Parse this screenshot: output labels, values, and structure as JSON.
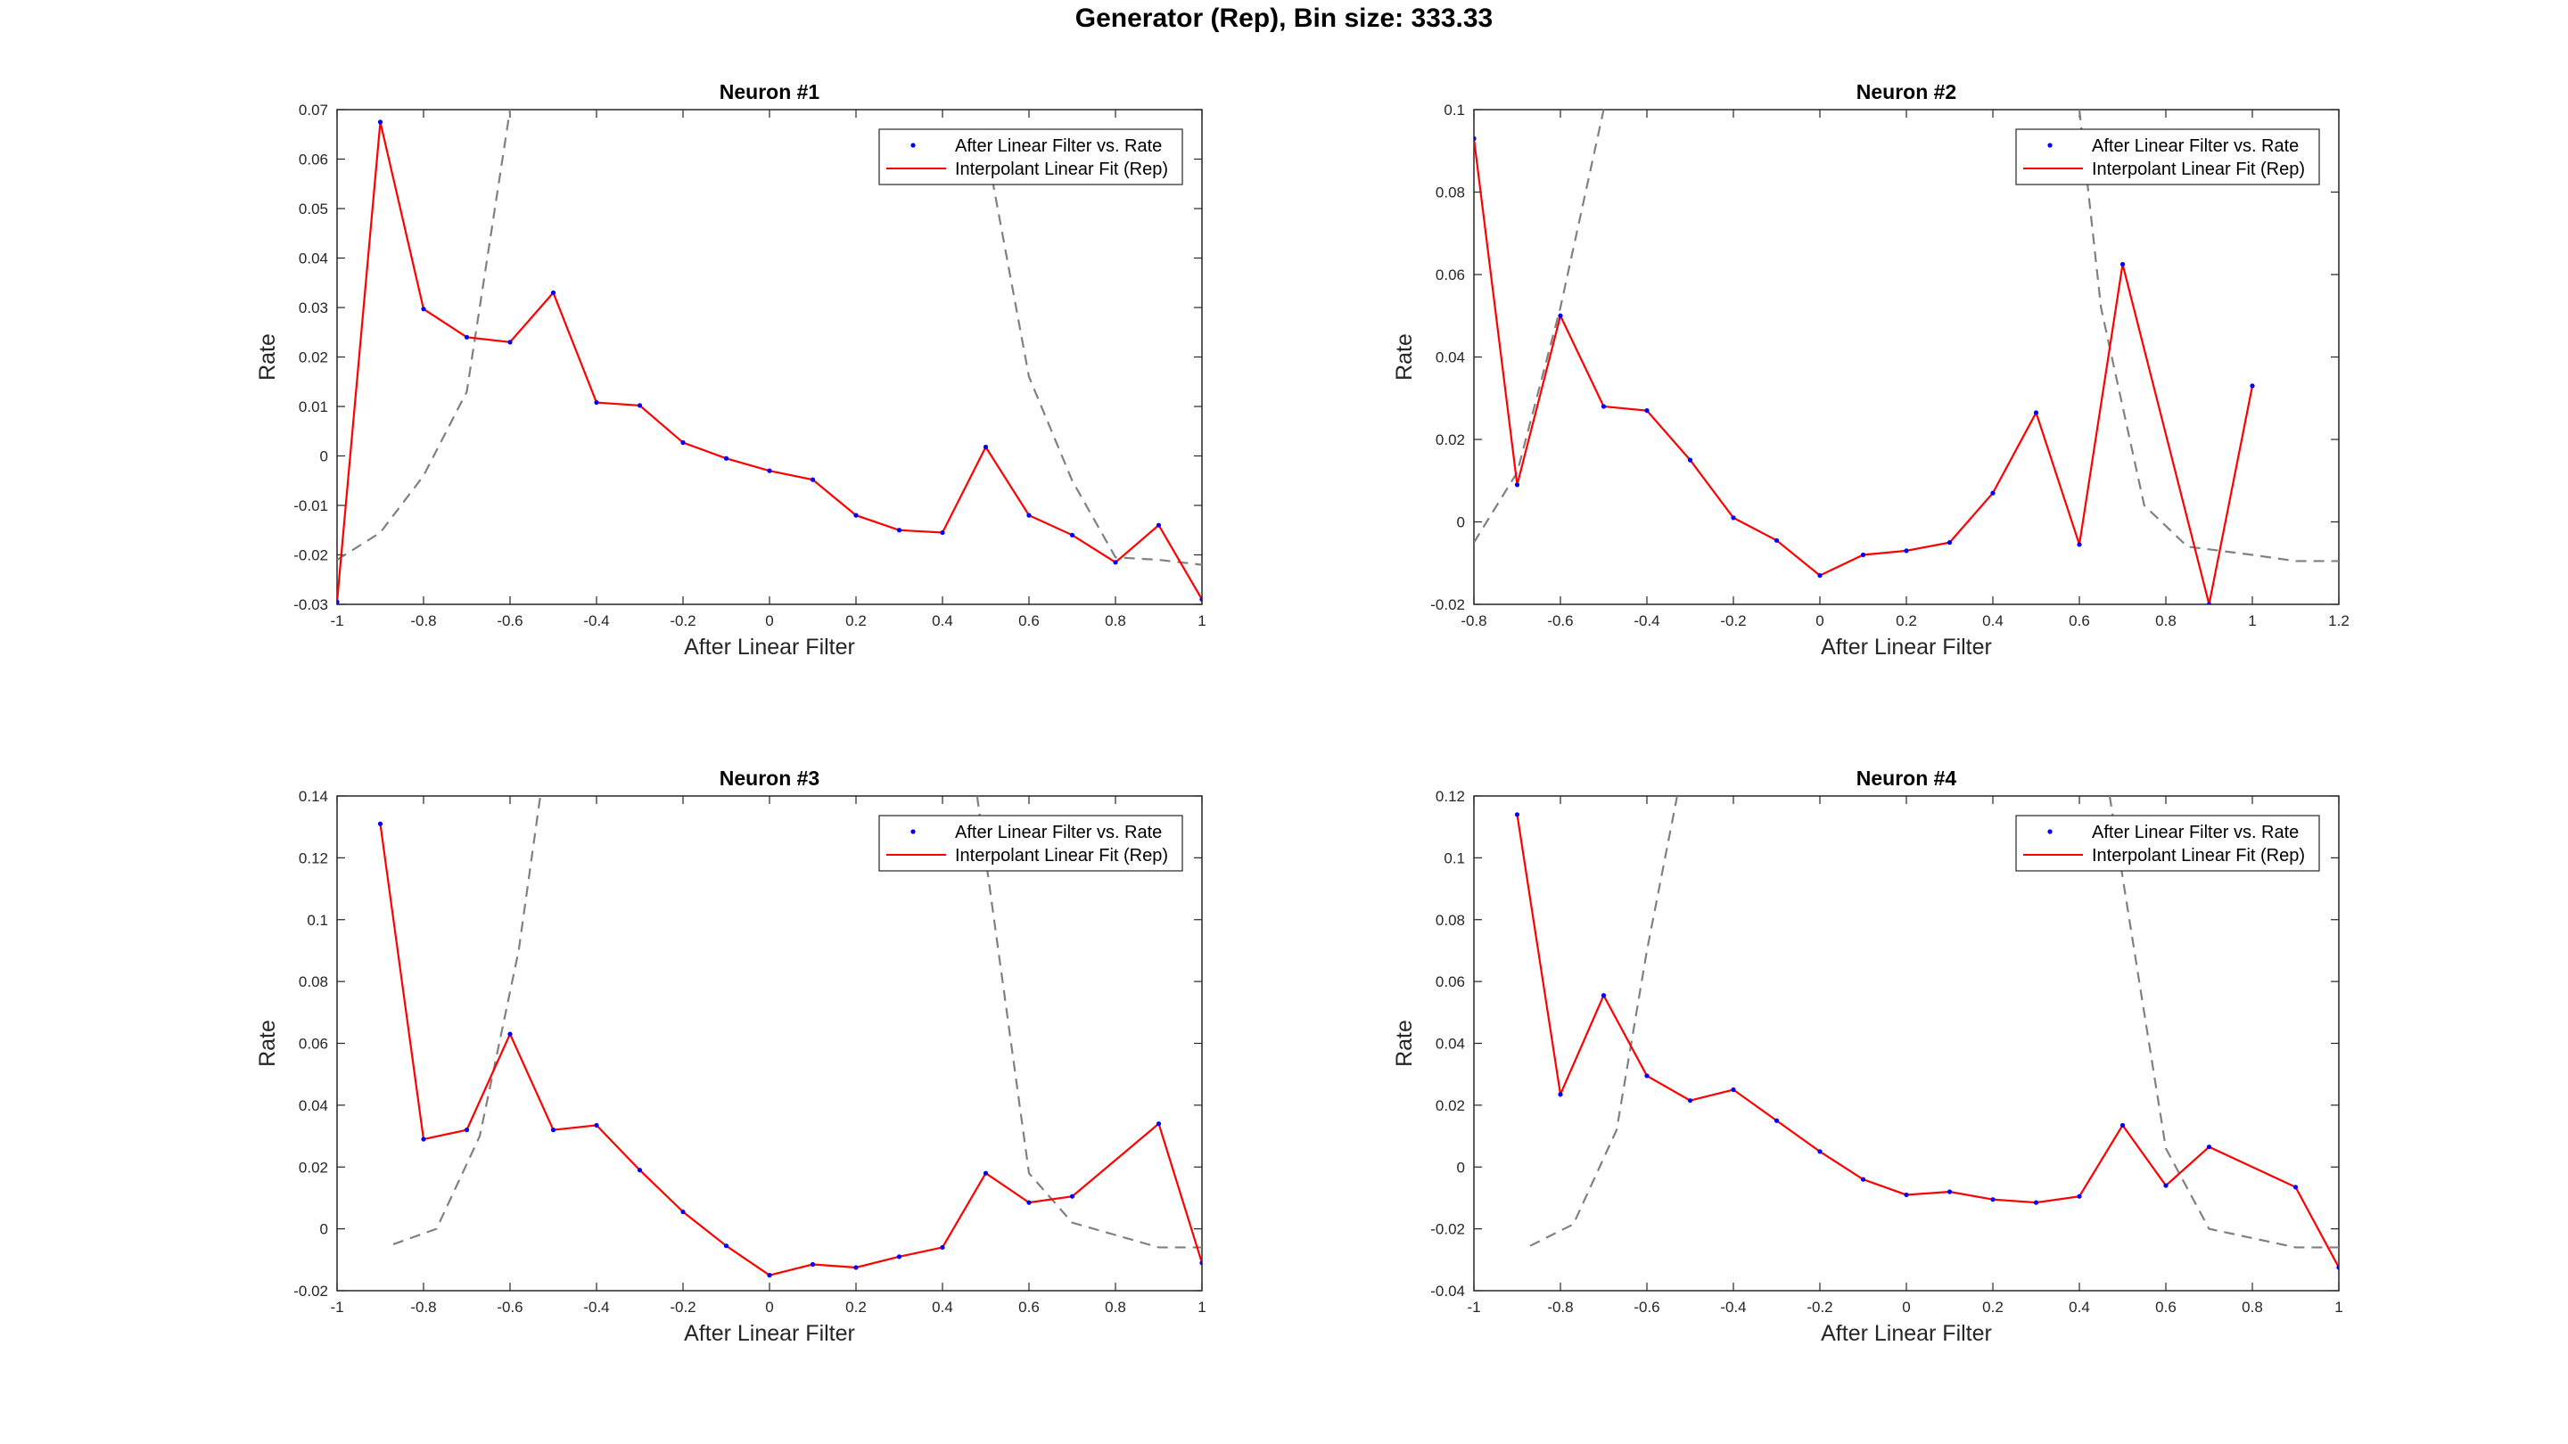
{
  "figure": {
    "title": "Generator (Rep), Bin size: 333.33"
  },
  "legend": {
    "markers_label": "After Linear Filter vs. Rate",
    "fit_label": "Interpolant Linear Fit (Rep)"
  },
  "colors": {
    "fit": "#ff0000",
    "points": "#0000ff",
    "dashed": "#808080",
    "axis": "#262626"
  },
  "chart_data": [
    {
      "type": "line",
      "title": "Neuron #1",
      "xlabel": "After Linear Filter",
      "ylabel": "Rate",
      "xlim": [
        -1,
        1
      ],
      "ylim": [
        -0.03,
        0.07
      ],
      "xticks": [
        "-1",
        "-0.8",
        "-0.6",
        "-0.4",
        "-0.2",
        "0",
        "0.2",
        "0.4",
        "0.6",
        "0.8",
        "1"
      ],
      "xtick_values": [
        -1,
        -0.8,
        -0.6,
        -0.4,
        -0.2,
        0,
        0.2,
        0.4,
        0.6,
        0.8,
        1
      ],
      "yticks": [
        "-0.03",
        "-0.02",
        "-0.01",
        "0",
        "0.01",
        "0.02",
        "0.03",
        "0.04",
        "0.05",
        "0.06",
        "0.07"
      ],
      "ytick_values": [
        -0.03,
        -0.02,
        -0.01,
        0,
        0.01,
        0.02,
        0.03,
        0.04,
        0.05,
        0.06,
        0.07
      ],
      "legend_position": "top-right",
      "series": [
        {
          "x": [
            -1,
            -0.9,
            -0.8,
            -0.7,
            -0.6,
            -0.5,
            -0.4,
            -0.3,
            -0.2,
            -0.1,
            0,
            0.1,
            0.2,
            0.3,
            0.4,
            0.5,
            0.6,
            0.7,
            0.8,
            0.9,
            1
          ],
          "y": [
            -0.0295,
            0.0675,
            0.0297,
            0.024,
            0.023,
            0.033,
            0.0108,
            0.0102,
            0.0027,
            -0.0005,
            -0.003,
            -0.0048,
            -0.012,
            -0.015,
            -0.0155,
            0.0018,
            -0.012,
            -0.016,
            -0.0215,
            -0.014,
            -0.029
          ]
        }
      ],
      "dashed_curves": [
        {
          "x": [
            -1,
            -0.9,
            -0.8,
            -0.7,
            -0.6
          ],
          "y": [
            -0.021,
            -0.0155,
            -0.004,
            0.013,
            0.07
          ]
        },
        {
          "x": [
            0.5,
            0.6,
            0.7,
            0.8,
            0.9,
            1
          ],
          "y": [
            0.063,
            0.016,
            -0.005,
            -0.0205,
            -0.021,
            -0.022
          ]
        }
      ]
    },
    {
      "type": "line",
      "title": "Neuron #2",
      "xlabel": "After Linear Filter",
      "ylabel": "Rate",
      "xlim": [
        -0.8,
        1.2
      ],
      "ylim": [
        -0.02,
        0.1
      ],
      "xticks": [
        "-0.8",
        "-0.6",
        "-0.4",
        "-0.2",
        "0",
        "0.2",
        "0.4",
        "0.6",
        "0.8",
        "1",
        "1.2"
      ],
      "xtick_values": [
        -0.8,
        -0.6,
        -0.4,
        -0.2,
        0,
        0.2,
        0.4,
        0.6,
        0.8,
        1,
        1.2
      ],
      "yticks": [
        "-0.02",
        "0",
        "0.02",
        "0.04",
        "0.06",
        "0.08",
        "0.1"
      ],
      "ytick_values": [
        -0.02,
        0,
        0.02,
        0.04,
        0.06,
        0.08,
        0.1
      ],
      "legend_position": "top-right",
      "series": [
        {
          "x": [
            -0.8,
            -0.7,
            -0.6,
            -0.5,
            -0.4,
            -0.3,
            -0.2,
            -0.1,
            0,
            0.1,
            0.2,
            0.3,
            0.4,
            0.5,
            0.6,
            0.7,
            0.9,
            1
          ],
          "y": [
            0.093,
            0.009,
            0.05,
            0.028,
            0.027,
            0.015,
            0.001,
            -0.0045,
            -0.013,
            -0.008,
            -0.007,
            -0.005,
            0.007,
            0.0265,
            -0.0055,
            0.0625,
            -0.02,
            0.033
          ]
        }
      ],
      "dashed_curves": [
        {
          "x": [
            -0.8,
            -0.7,
            -0.6,
            -0.5
          ],
          "y": [
            -0.005,
            0.012,
            0.052,
            0.1
          ]
        },
        {
          "x": [
            0.6,
            0.65,
            0.75,
            0.85,
            1,
            1.1,
            1.2
          ],
          "y": [
            0.1,
            0.052,
            0.004,
            -0.006,
            -0.008,
            -0.0095,
            -0.0095
          ]
        }
      ]
    },
    {
      "type": "line",
      "title": "Neuron #3",
      "xlabel": "After Linear Filter",
      "ylabel": "Rate",
      "xlim": [
        -1,
        1
      ],
      "ylim": [
        -0.02,
        0.14
      ],
      "xticks": [
        "-1",
        "-0.8",
        "-0.6",
        "-0.4",
        "-0.2",
        "0",
        "0.2",
        "0.4",
        "0.6",
        "0.8",
        "1"
      ],
      "xtick_values": [
        -1,
        -0.8,
        -0.6,
        -0.4,
        -0.2,
        0,
        0.2,
        0.4,
        0.6,
        0.8,
        1
      ],
      "yticks": [
        "-0.02",
        "0",
        "0.02",
        "0.04",
        "0.06",
        "0.08",
        "0.1",
        "0.12",
        "0.14"
      ],
      "ytick_values": [
        -0.02,
        0,
        0.02,
        0.04,
        0.06,
        0.08,
        0.1,
        0.12,
        0.14
      ],
      "legend_position": "top-right",
      "series": [
        {
          "x": [
            -0.9,
            -0.8,
            -0.7,
            -0.6,
            -0.5,
            -0.4,
            -0.3,
            -0.2,
            -0.1,
            0,
            0.1,
            0.2,
            0.3,
            0.4,
            0.5,
            0.6,
            0.7,
            0.9,
            1
          ],
          "y": [
            0.131,
            0.029,
            0.032,
            0.063,
            0.032,
            0.0335,
            0.019,
            0.0055,
            -0.0055,
            -0.015,
            -0.0115,
            -0.0125,
            -0.009,
            -0.006,
            0.018,
            0.0085,
            0.0105,
            0.034,
            -0.011
          ]
        }
      ],
      "dashed_curves": [
        {
          "x": [
            -0.87,
            -0.77,
            -0.67,
            -0.58,
            -0.53
          ],
          "y": [
            -0.005,
            0,
            0.03,
            0.09,
            0.14
          ]
        },
        {
          "x": [
            0.48,
            0.6,
            0.7,
            0.9,
            1
          ],
          "y": [
            0.14,
            0.018,
            0.002,
            -0.006,
            -0.006
          ]
        }
      ]
    },
    {
      "type": "line",
      "title": "Neuron #4",
      "xlabel": "After Linear Filter",
      "ylabel": "Rate",
      "xlim": [
        -1,
        1
      ],
      "ylim": [
        -0.04,
        0.12
      ],
      "xticks": [
        "-1",
        "-0.8",
        "-0.6",
        "-0.4",
        "-0.2",
        "0",
        "0.2",
        "0.4",
        "0.6",
        "0.8",
        "1"
      ],
      "xtick_values": [
        -1,
        -0.8,
        -0.6,
        -0.4,
        -0.2,
        0,
        0.2,
        0.4,
        0.6,
        0.8,
        1
      ],
      "yticks": [
        "-0.04",
        "-0.02",
        "0",
        "0.02",
        "0.04",
        "0.06",
        "0.08",
        "0.1",
        "0.12"
      ],
      "ytick_values": [
        -0.04,
        -0.02,
        0,
        0.02,
        0.04,
        0.06,
        0.08,
        0.1,
        0.12
      ],
      "legend_position": "top-right",
      "series": [
        {
          "x": [
            -0.9,
            -0.8,
            -0.7,
            -0.6,
            -0.5,
            -0.4,
            -0.3,
            -0.2,
            -0.1,
            0,
            0.1,
            0.2,
            0.3,
            0.4,
            0.5,
            0.6,
            0.7,
            0.9,
            1
          ],
          "y": [
            0.114,
            0.0235,
            0.0555,
            0.0295,
            0.0215,
            0.025,
            0.015,
            0.005,
            -0.004,
            -0.009,
            -0.008,
            -0.0105,
            -0.0115,
            -0.0095,
            0.0135,
            -0.006,
            0.0065,
            -0.0065,
            -0.0325
          ]
        }
      ],
      "dashed_curves": [
        {
          "x": [
            -0.87,
            -0.77,
            -0.67,
            -0.6,
            -0.53
          ],
          "y": [
            -0.0255,
            -0.0185,
            0.012,
            0.07,
            0.12
          ]
        },
        {
          "x": [
            0.47,
            0.6,
            0.7,
            0.9,
            1
          ],
          "y": [
            0.12,
            0.006,
            -0.02,
            -0.026,
            -0.026
          ]
        }
      ]
    }
  ]
}
